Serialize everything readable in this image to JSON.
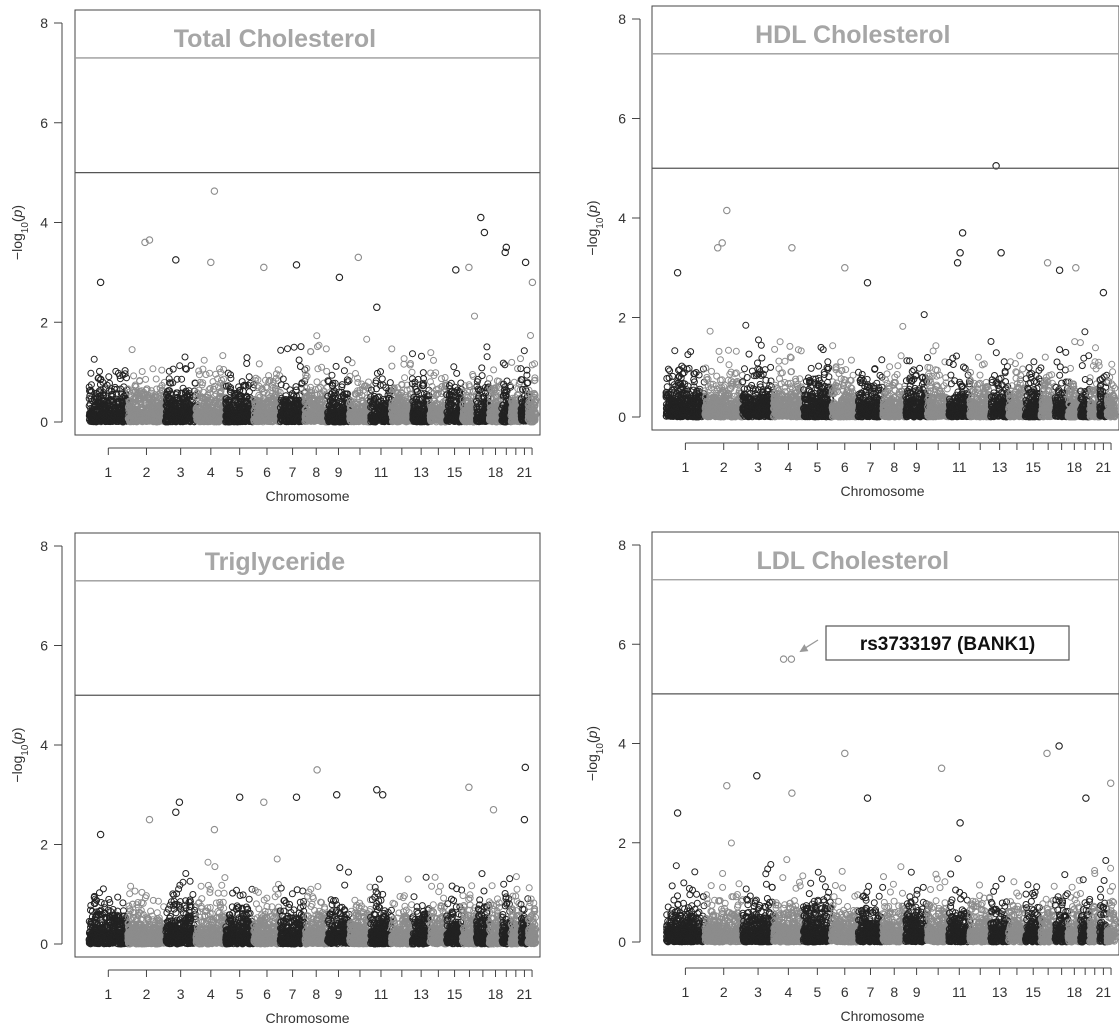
{
  "figure": {
    "point_colors": {
      "odd_chromosome": "#222222",
      "even_chromosome": "#8c8c8c"
    },
    "threshold_colors": {
      "genome_wide": "#9a9a9a",
      "suggestive": "#555555"
    },
    "title_color": "#a6a6a6"
  },
  "chart_data": [
    {
      "type": "scatter",
      "title": "Total Cholesterol",
      "xlabel": "Chromosome",
      "ylabel": "-log10(p)",
      "ylim": [
        0,
        8
      ],
      "yticks": [
        "0",
        "2",
        "4",
        "6",
        "8"
      ],
      "xtick_labels": [
        "1",
        "2",
        "3",
        "4",
        "5",
        "6",
        "7",
        "8",
        "9",
        "11",
        "13",
        "15",
        "18",
        "21"
      ],
      "threshold_lines": [
        7.3,
        5.0
      ],
      "grid": false,
      "peaks": [
        {
          "chr": 1,
          "y": 2.8
        },
        {
          "chr": 2,
          "y": 3.65
        },
        {
          "chr": 2,
          "y": 3.6
        },
        {
          "chr": 3,
          "y": 3.25
        },
        {
          "chr": 4,
          "y": 4.63
        },
        {
          "chr": 4,
          "y": 3.2
        },
        {
          "chr": 6,
          "y": 3.1
        },
        {
          "chr": 7,
          "y": 3.15
        },
        {
          "chr": 9,
          "y": 2.9
        },
        {
          "chr": 10,
          "y": 3.3
        },
        {
          "chr": 11,
          "y": 2.3
        },
        {
          "chr": 15,
          "y": 3.05
        },
        {
          "chr": 16,
          "y": 3.1
        },
        {
          "chr": 17,
          "y": 4.1
        },
        {
          "chr": 17,
          "y": 3.8
        },
        {
          "chr": 19,
          "y": 3.5
        },
        {
          "chr": 19,
          "y": 3.4
        },
        {
          "chr": 21,
          "y": 3.2
        },
        {
          "chr": 22,
          "y": 2.8
        }
      ]
    },
    {
      "type": "scatter",
      "title": "HDL Cholesterol",
      "xlabel": "Chromosome",
      "ylabel": "-log10(p)",
      "ylim": [
        0,
        8
      ],
      "yticks": [
        "0",
        "2",
        "4",
        "6",
        "8"
      ],
      "xtick_labels": [
        "1",
        "2",
        "3",
        "4",
        "5",
        "6",
        "7",
        "8",
        "9",
        "11",
        "13",
        "15",
        "18",
        "21"
      ],
      "threshold_lines": [
        7.3,
        5.0
      ],
      "grid": false,
      "peaks": [
        {
          "chr": 1,
          "y": 2.9
        },
        {
          "chr": 2,
          "y": 4.15
        },
        {
          "chr": 2,
          "y": 3.5
        },
        {
          "chr": 2,
          "y": 3.4
        },
        {
          "chr": 4,
          "y": 3.4
        },
        {
          "chr": 6,
          "y": 3.0
        },
        {
          "chr": 7,
          "y": 2.7
        },
        {
          "chr": 11,
          "y": 3.7
        },
        {
          "chr": 11,
          "y": 3.3
        },
        {
          "chr": 11,
          "y": 3.1
        },
        {
          "chr": 13,
          "y": 5.05
        },
        {
          "chr": 13,
          "y": 3.3
        },
        {
          "chr": 16,
          "y": 3.1
        },
        {
          "chr": 17,
          "y": 2.95
        },
        {
          "chr": 18,
          "y": 3.0
        },
        {
          "chr": 21,
          "y": 2.5
        }
      ]
    },
    {
      "type": "scatter",
      "title": "Triglyceride",
      "xlabel": "Chromosome",
      "ylabel": "-log10(p)",
      "ylim": [
        0,
        8
      ],
      "yticks": [
        "0",
        "2",
        "4",
        "6",
        "8"
      ],
      "xtick_labels": [
        "1",
        "2",
        "3",
        "4",
        "5",
        "6",
        "7",
        "8",
        "9",
        "11",
        "13",
        "15",
        "18",
        "21"
      ],
      "threshold_lines": [
        7.3,
        5.0
      ],
      "grid": false,
      "peaks": [
        {
          "chr": 1,
          "y": 2.2
        },
        {
          "chr": 2,
          "y": 2.5
        },
        {
          "chr": 3,
          "y": 2.85
        },
        {
          "chr": 3,
          "y": 2.65
        },
        {
          "chr": 4,
          "y": 2.3
        },
        {
          "chr": 5,
          "y": 2.95
        },
        {
          "chr": 6,
          "y": 2.85
        },
        {
          "chr": 7,
          "y": 2.95
        },
        {
          "chr": 8,
          "y": 3.5
        },
        {
          "chr": 9,
          "y": 3.0
        },
        {
          "chr": 11,
          "y": 3.1
        },
        {
          "chr": 11,
          "y": 3.0
        },
        {
          "chr": 16,
          "y": 3.15
        },
        {
          "chr": 18,
          "y": 2.7
        },
        {
          "chr": 21,
          "y": 3.55
        },
        {
          "chr": 21,
          "y": 2.5
        }
      ]
    },
    {
      "type": "scatter",
      "title": "LDL Cholesterol",
      "xlabel": "Chromosome",
      "ylabel": "-log10(p)",
      "ylim": [
        0,
        8
      ],
      "yticks": [
        "0",
        "2",
        "4",
        "6",
        "8"
      ],
      "xtick_labels": [
        "1",
        "2",
        "3",
        "4",
        "5",
        "6",
        "7",
        "8",
        "9",
        "11",
        "13",
        "15",
        "18",
        "21"
      ],
      "threshold_lines": [
        7.3,
        5.0
      ],
      "grid": false,
      "annotation": {
        "text": "rs3733197 (BANK1)",
        "chr": 4,
        "y": 5.7
      },
      "peaks": [
        {
          "chr": 1,
          "y": 2.6
        },
        {
          "chr": 2,
          "y": 3.15
        },
        {
          "chr": 3,
          "y": 3.35
        },
        {
          "chr": 4,
          "y": 5.7
        },
        {
          "chr": 4,
          "y": 3.0
        },
        {
          "chr": 6,
          "y": 3.8
        },
        {
          "chr": 7,
          "y": 2.9
        },
        {
          "chr": 10,
          "y": 3.5
        },
        {
          "chr": 11,
          "y": 2.4
        },
        {
          "chr": 16,
          "y": 3.8
        },
        {
          "chr": 17,
          "y": 3.95
        },
        {
          "chr": 19,
          "y": 2.9
        },
        {
          "chr": 22,
          "y": 3.2
        }
      ]
    }
  ]
}
